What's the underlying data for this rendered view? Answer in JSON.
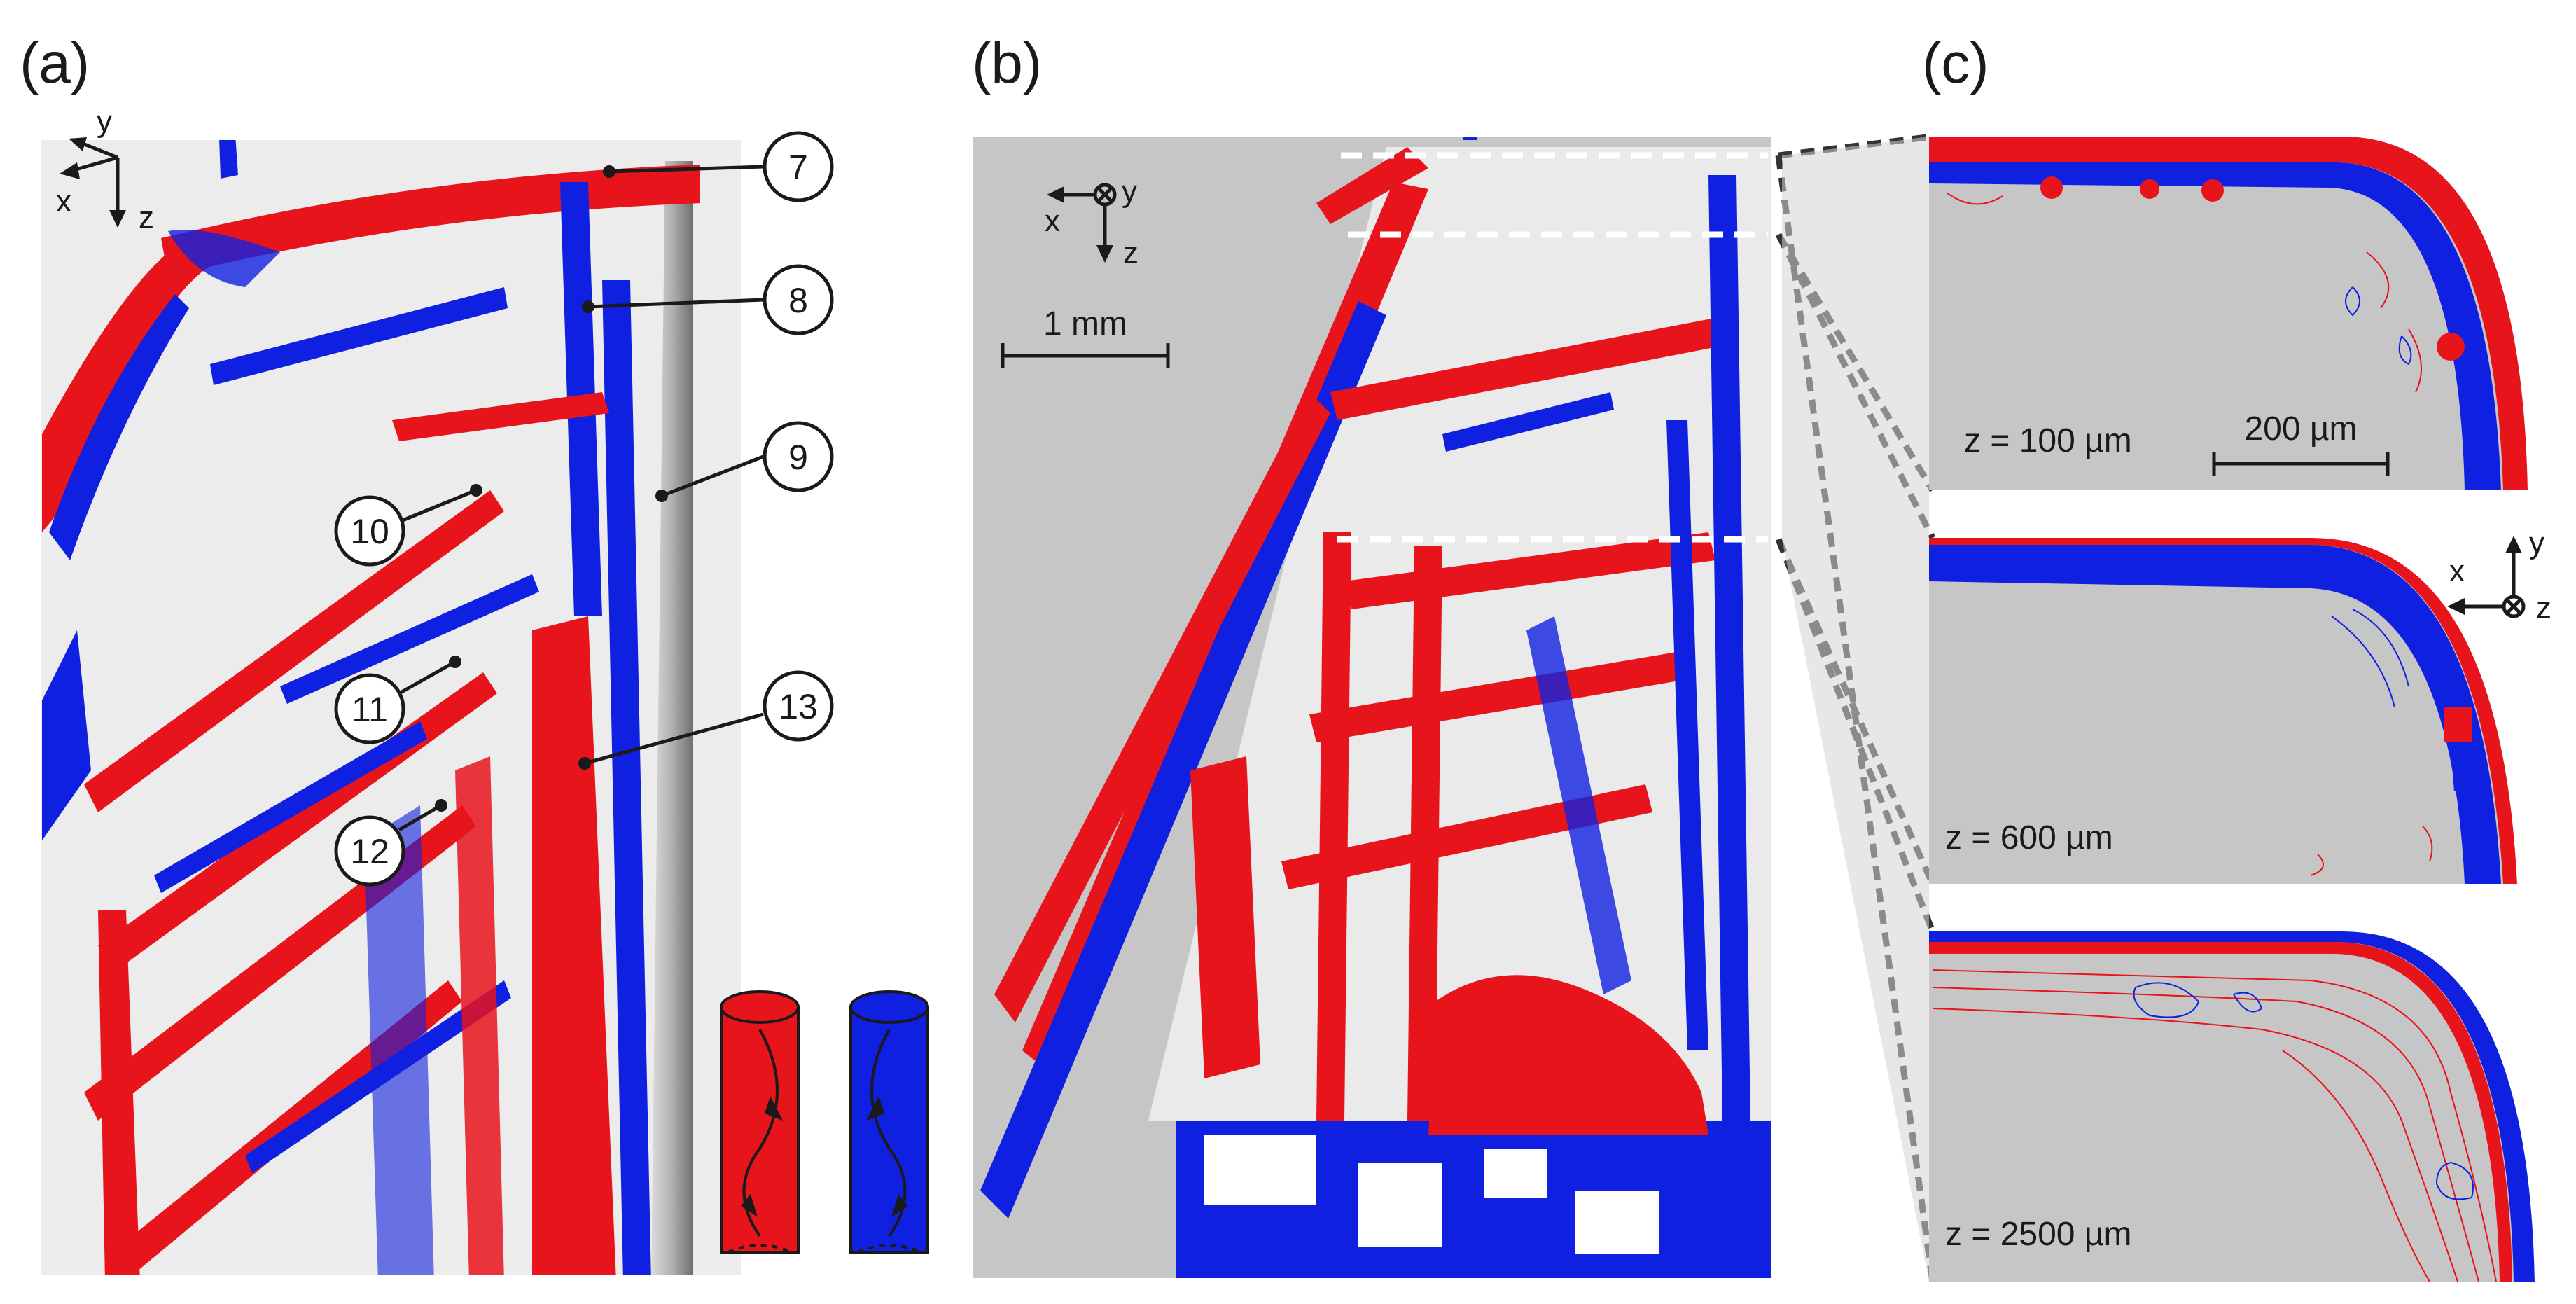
{
  "panels": {
    "a": {
      "label": "(a)",
      "axes": {
        "x": "x",
        "y": "y",
        "z": "z"
      },
      "callouts": [
        "7",
        "8",
        "9",
        "10",
        "11",
        "12",
        "13"
      ],
      "legend_colors": {
        "positive": "#e8141b",
        "negative": "#1020e0"
      }
    },
    "b": {
      "label": "(b)",
      "axes": {
        "x": "x",
        "y": "y",
        "z": "z"
      },
      "scale_bar": "1 mm"
    },
    "c": {
      "label": "(c)",
      "axes": {
        "x": "x",
        "y": "y",
        "z": "z"
      },
      "scale_bar": "200 µm",
      "slices": [
        {
          "z_label": "z = 100 µm"
        },
        {
          "z_label": "z = 600 µm"
        },
        {
          "z_label": "z = 2500 µm"
        }
      ]
    }
  },
  "colors": {
    "red": "#e8141b",
    "blue": "#1020e0",
    "gray_bg": "#c6c6c6",
    "light_bg": "#e6e6e6"
  }
}
